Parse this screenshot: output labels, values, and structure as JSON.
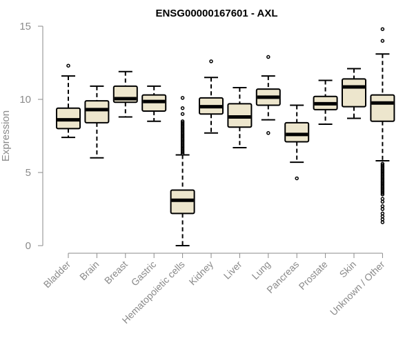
{
  "chart_data": {
    "type": "boxplot",
    "title": "ENSG00000167601 - AXL",
    "xlabel": "",
    "ylabel": "Expression",
    "ylim": [
      0,
      15
    ],
    "yticks": [
      0,
      5,
      10,
      15
    ],
    "grid": false,
    "colors": {
      "box_fill": "#ede6cd",
      "box_stroke": "#000000",
      "median": "#000000",
      "axis": "#8a8a8a"
    },
    "categories": [
      "Bladder",
      "Brain",
      "Breast",
      "Gastric",
      "Hematopoietic cells",
      "Kidney",
      "Liver",
      "Lung",
      "Pancreas",
      "Prostate",
      "Skin",
      "Unknown / Other"
    ],
    "boxes": [
      {
        "category": "Bladder",
        "whisker_low": 7.4,
        "q1": 8.0,
        "median": 8.6,
        "q3": 9.4,
        "whisker_high": 11.6,
        "outliers": [
          12.3
        ]
      },
      {
        "category": "Brain",
        "whisker_low": 6.0,
        "q1": 8.4,
        "median": 9.3,
        "q3": 9.9,
        "whisker_high": 10.9,
        "outliers": []
      },
      {
        "category": "Breast",
        "whisker_low": 8.8,
        "q1": 9.8,
        "median": 10.05,
        "q3": 10.9,
        "whisker_high": 11.9,
        "outliers": []
      },
      {
        "category": "Gastric",
        "whisker_low": 8.5,
        "q1": 9.2,
        "median": 9.85,
        "q3": 10.3,
        "whisker_high": 10.9,
        "outliers": []
      },
      {
        "category": "Hematopoietic cells",
        "whisker_low": 0.0,
        "q1": 2.2,
        "median": 3.1,
        "q3": 3.8,
        "whisker_high": 6.2,
        "outliers": [
          6.3,
          6.4,
          6.5,
          6.6,
          6.7,
          6.8,
          6.9,
          7.0,
          7.1,
          7.2,
          7.3,
          7.4,
          7.5,
          7.6,
          7.7,
          7.8,
          7.9,
          8.0,
          8.1,
          8.2,
          8.3,
          8.4,
          8.5,
          9.0,
          9.4,
          10.1
        ]
      },
      {
        "category": "Kidney",
        "whisker_low": 7.7,
        "q1": 9.0,
        "median": 9.5,
        "q3": 10.1,
        "whisker_high": 11.5,
        "outliers": [
          12.6
        ]
      },
      {
        "category": "Liver",
        "whisker_low": 6.7,
        "q1": 8.1,
        "median": 8.8,
        "q3": 9.7,
        "whisker_high": 10.8,
        "outliers": []
      },
      {
        "category": "Lung",
        "whisker_low": 8.6,
        "q1": 9.6,
        "median": 10.15,
        "q3": 10.7,
        "whisker_high": 11.6,
        "outliers": [
          12.9,
          7.7
        ]
      },
      {
        "category": "Pancreas",
        "whisker_low": 5.7,
        "q1": 7.1,
        "median": 7.6,
        "q3": 8.4,
        "whisker_high": 9.6,
        "outliers": [
          4.6
        ]
      },
      {
        "category": "Prostate",
        "whisker_low": 8.3,
        "q1": 9.3,
        "median": 9.7,
        "q3": 10.2,
        "whisker_high": 11.3,
        "outliers": []
      },
      {
        "category": "Skin",
        "whisker_low": 8.7,
        "q1": 9.5,
        "median": 10.85,
        "q3": 11.4,
        "whisker_high": 12.1,
        "outliers": []
      },
      {
        "category": "Unknown / Other",
        "whisker_low": 5.8,
        "q1": 8.5,
        "median": 9.75,
        "q3": 10.3,
        "whisker_high": 13.1,
        "outliers": [
          14.8,
          14.0,
          5.6,
          5.5,
          5.4,
          5.3,
          5.2,
          5.1,
          5.0,
          4.9,
          4.8,
          4.7,
          4.6,
          4.5,
          4.4,
          4.3,
          4.2,
          4.1,
          4.0,
          3.9,
          3.8,
          3.7,
          3.6,
          3.5,
          3.2,
          3.0,
          2.7,
          2.5,
          2.2,
          2.0,
          1.8,
          1.6
        ]
      }
    ]
  }
}
